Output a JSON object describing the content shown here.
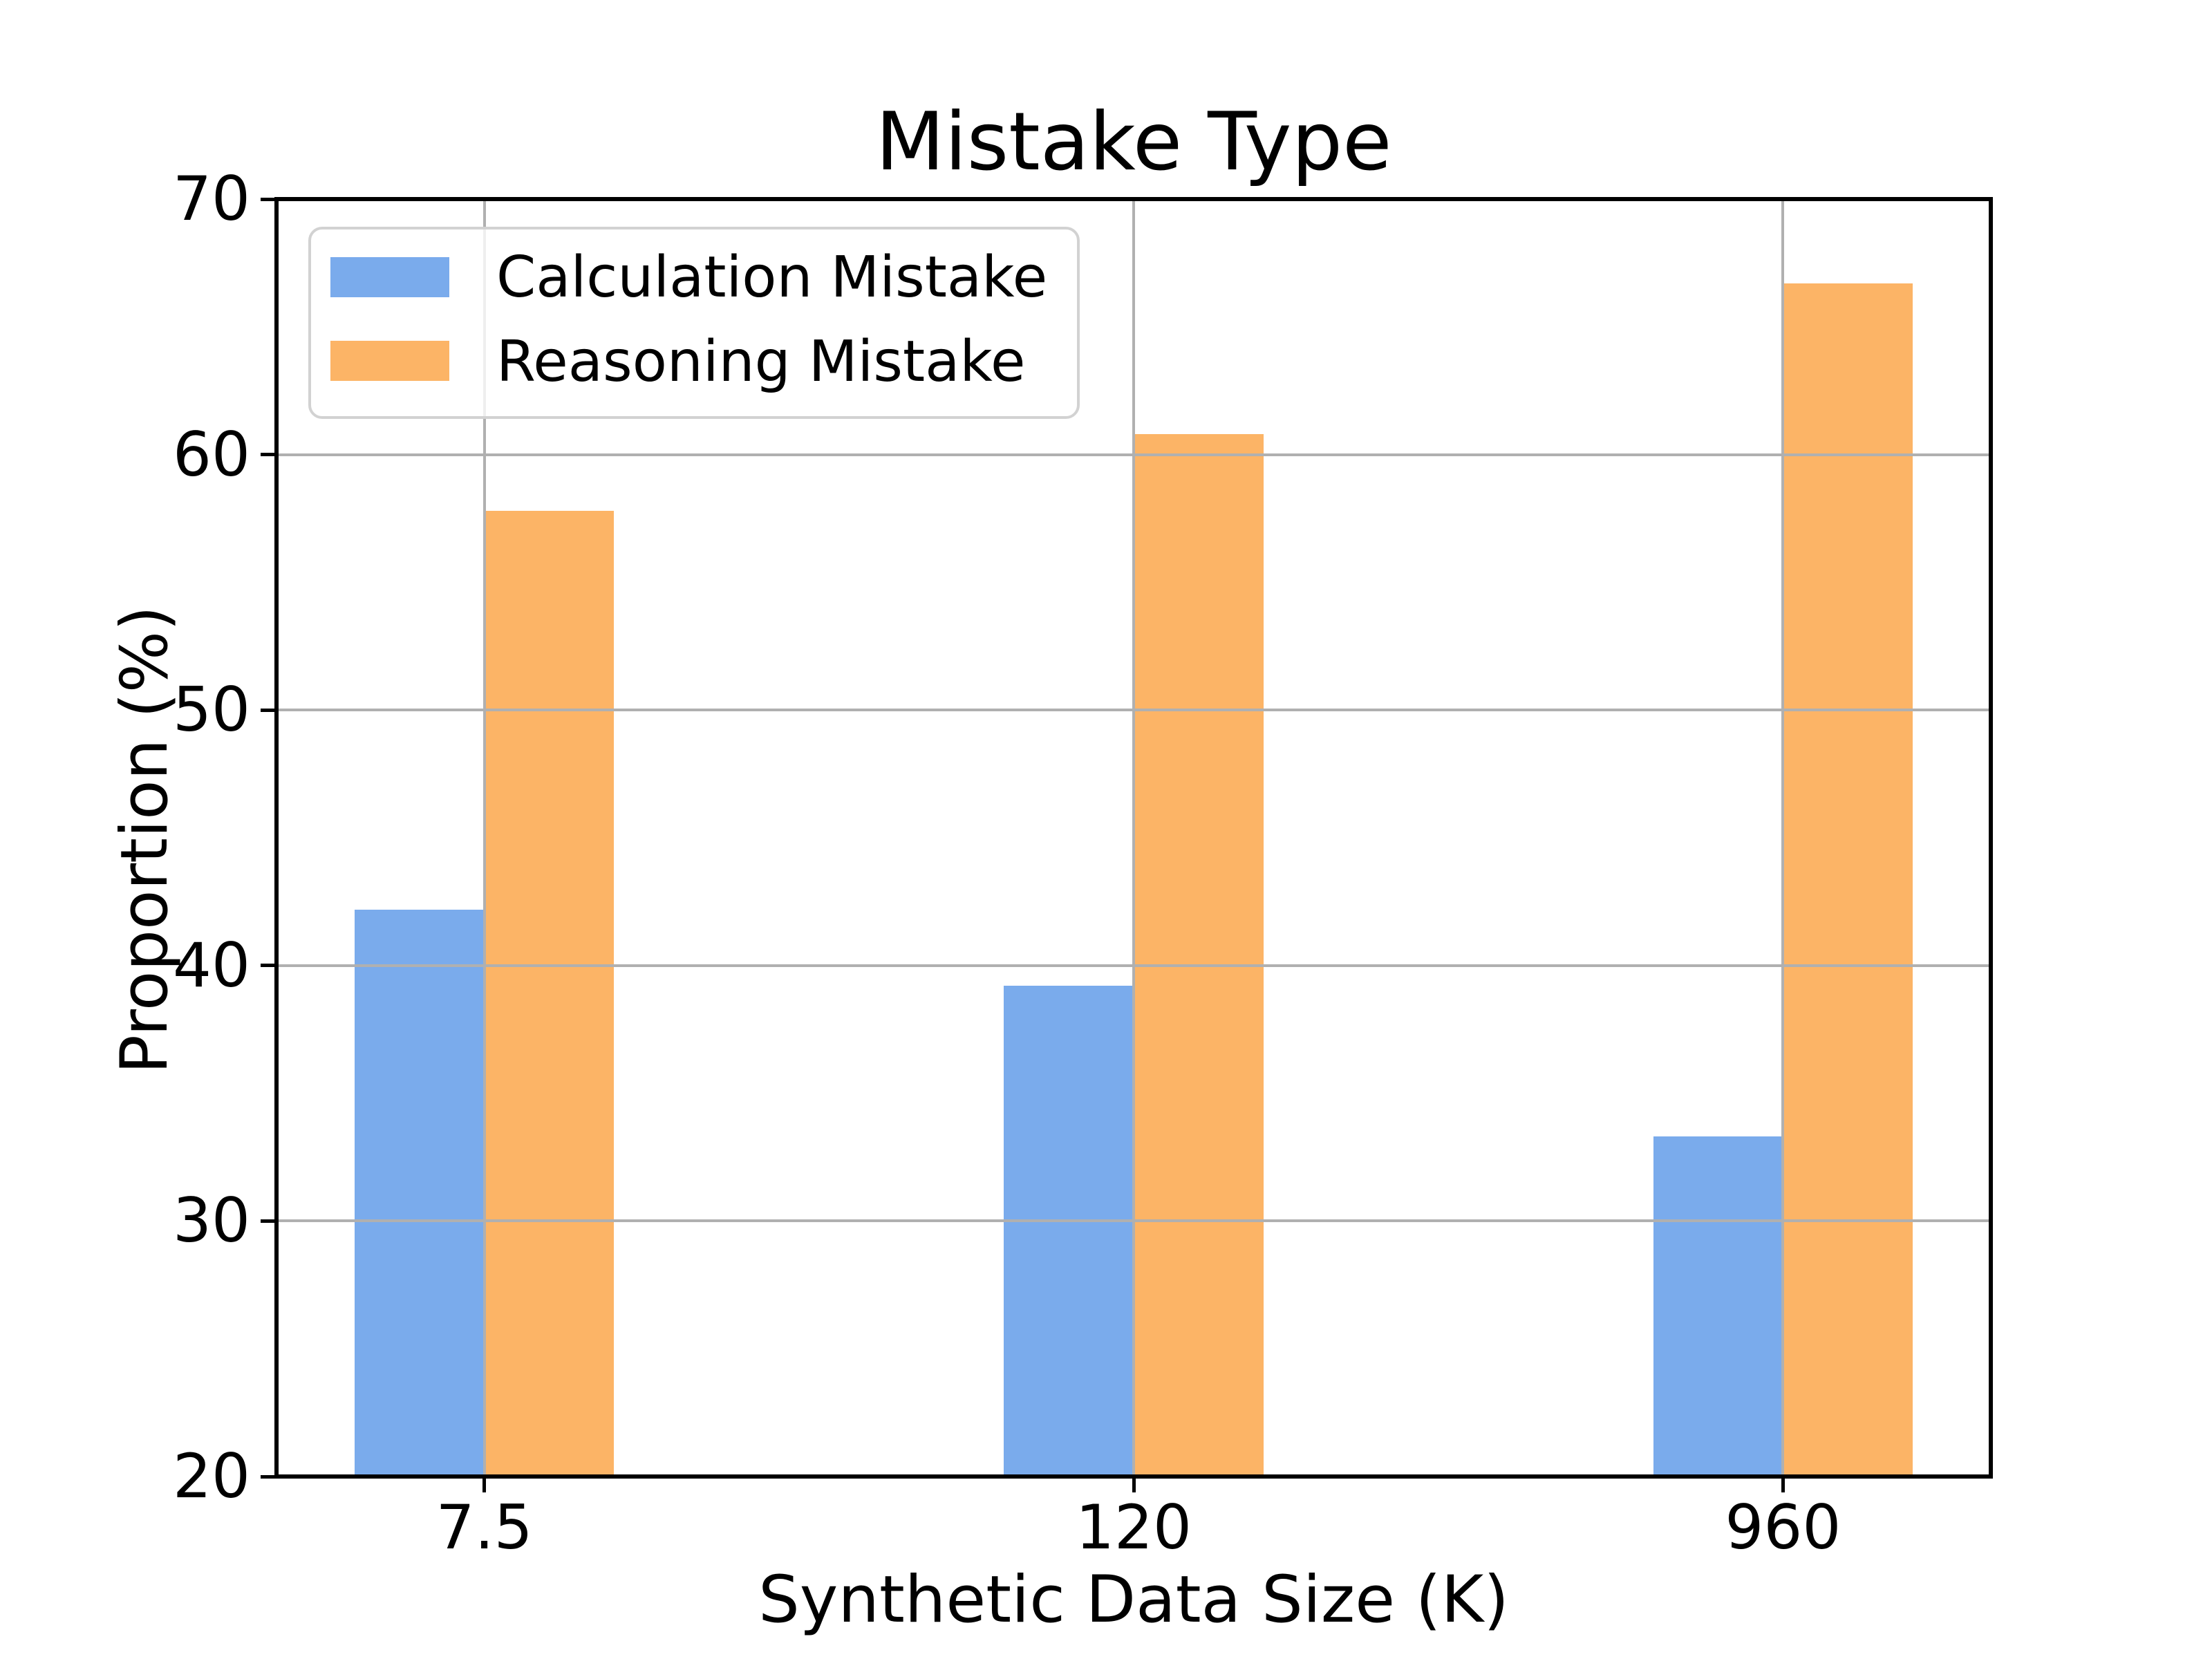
{
  "chart_data": {
    "type": "bar",
    "title": "Mistake Type",
    "xlabel": "Synthetic Data Size (K)",
    "ylabel": "Proportion (%)",
    "categories": [
      "7.5",
      "120",
      "960"
    ],
    "series": [
      {
        "name": "Calculation Mistake",
        "color": "#7aabec",
        "values": [
          42.2,
          39.2,
          33.3
        ]
      },
      {
        "name": "Reasoning Mistake",
        "color": "#fcb466",
        "values": [
          57.8,
          60.8,
          66.7
        ]
      }
    ],
    "ylim": [
      20,
      70
    ],
    "yticks": [
      20,
      30,
      40,
      50,
      60,
      70
    ],
    "grid": true,
    "grid_color": "#b0b0b0",
    "spine_color": "#000000",
    "legend_position": "upper left"
  }
}
